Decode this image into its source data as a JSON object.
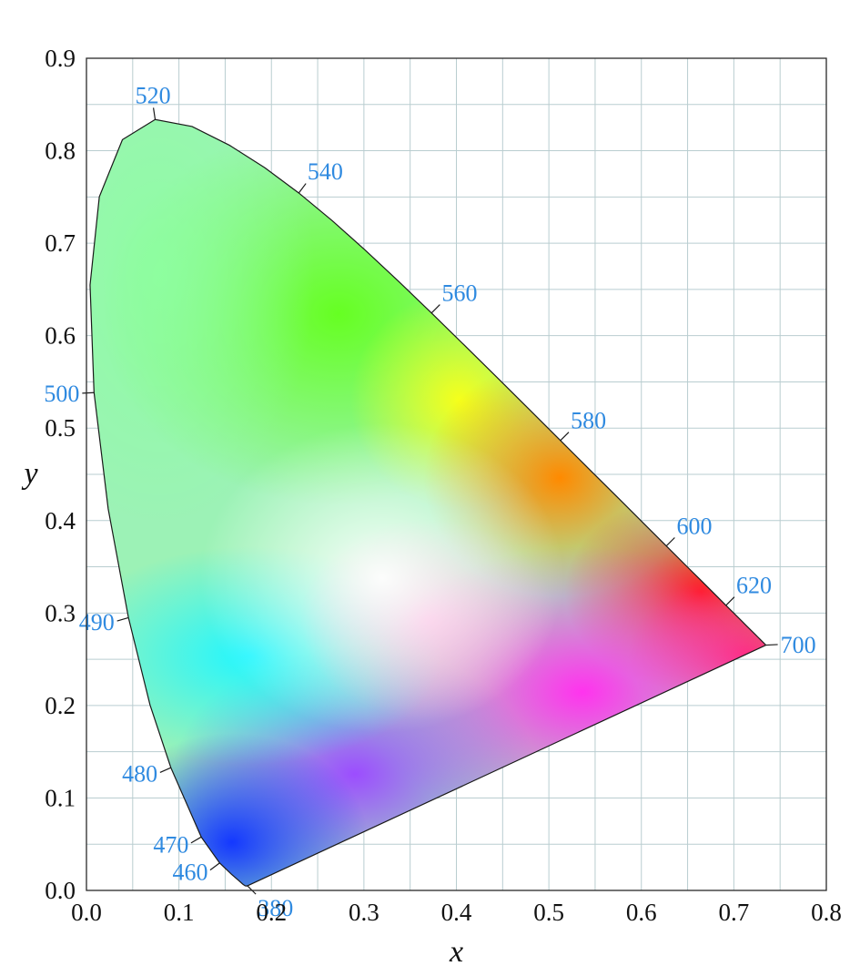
{
  "chart_data": {
    "type": "scatter",
    "title": "",
    "xlabel": "x",
    "ylabel": "y",
    "xlim": [
      0.0,
      0.8
    ],
    "ylim": [
      0.0,
      0.9
    ],
    "x_ticks": [
      "0.0",
      "0.1",
      "0.2",
      "0.3",
      "0.4",
      "0.5",
      "0.6",
      "0.7",
      "0.8"
    ],
    "y_ticks": [
      "0.0",
      "0.1",
      "0.2",
      "0.3",
      "0.4",
      "0.5",
      "0.6",
      "0.7",
      "0.8",
      "0.9"
    ],
    "grid": true,
    "grid_minor_step": 0.05,
    "series": [
      {
        "values": [
          [
            0.1741,
            0.005
          ],
          [
            0.174,
            0.005
          ],
          [
            0.1738,
            0.0049
          ],
          [
            0.1736,
            0.0049
          ],
          [
            0.1733,
            0.0048
          ],
          [
            0.1726,
            0.0048
          ],
          [
            0.1714,
            0.0051
          ],
          [
            0.1689,
            0.0069
          ],
          [
            0.1644,
            0.0109
          ],
          [
            0.1566,
            0.0177
          ],
          [
            0.144,
            0.0297
          ],
          [
            0.1241,
            0.0578
          ],
          [
            0.0913,
            0.1327
          ],
          [
            0.0687,
            0.2007
          ],
          [
            0.0454,
            0.295
          ],
          [
            0.0235,
            0.4127
          ],
          [
            0.0082,
            0.5384
          ],
          [
            0.0039,
            0.6548
          ],
          [
            0.0139,
            0.7502
          ],
          [
            0.0389,
            0.812
          ],
          [
            0.0743,
            0.8338
          ],
          [
            0.1142,
            0.8262
          ],
          [
            0.1547,
            0.8059
          ],
          [
            0.1929,
            0.7816
          ],
          [
            0.2296,
            0.7543
          ],
          [
            0.2658,
            0.7243
          ],
          [
            0.3016,
            0.6923
          ],
          [
            0.3373,
            0.6589
          ],
          [
            0.3731,
            0.6245
          ],
          [
            0.4087,
            0.5896
          ],
          [
            0.4441,
            0.5547
          ],
          [
            0.4788,
            0.5202
          ],
          [
            0.5125,
            0.4866
          ],
          [
            0.5448,
            0.4544
          ],
          [
            0.5752,
            0.4242
          ],
          [
            0.6029,
            0.3965
          ],
          [
            0.627,
            0.3725
          ],
          [
            0.6482,
            0.3514
          ],
          [
            0.6658,
            0.334
          ],
          [
            0.6801,
            0.3197
          ],
          [
            0.6915,
            0.3083
          ],
          [
            0.7006,
            0.2993
          ],
          [
            0.7079,
            0.292
          ],
          [
            0.714,
            0.2859
          ],
          [
            0.719,
            0.2809
          ],
          [
            0.723,
            0.277
          ],
          [
            0.726,
            0.274
          ],
          [
            0.7283,
            0.2717
          ],
          [
            0.73,
            0.27
          ],
          [
            0.7311,
            0.2689
          ],
          [
            0.732,
            0.268
          ],
          [
            0.7327,
            0.2673
          ],
          [
            0.7334,
            0.2666
          ],
          [
            0.734,
            0.266
          ],
          [
            0.7344,
            0.2656
          ],
          [
            0.7346,
            0.2654
          ],
          [
            0.7347,
            0.2653
          ]
        ]
      }
    ],
    "wavelength_labels": [
      {
        "label": "380",
        "x": 0.1741,
        "y": 0.005,
        "dir": [
          0.7,
          -0.7
        ]
      },
      {
        "label": "460",
        "x": 0.144,
        "y": 0.0297,
        "dir": [
          -0.8,
          -0.6
        ]
      },
      {
        "label": "470",
        "x": 0.1241,
        "y": 0.0578,
        "dir": [
          -0.85,
          -0.5
        ]
      },
      {
        "label": "480",
        "x": 0.0913,
        "y": 0.1327,
        "dir": [
          -0.92,
          -0.4
        ]
      },
      {
        "label": "490",
        "x": 0.0454,
        "y": 0.295,
        "dir": [
          -0.96,
          -0.28
        ]
      },
      {
        "label": "500",
        "x": 0.0082,
        "y": 0.5384,
        "dir": [
          -1.0,
          -0.05
        ]
      },
      {
        "label": "520",
        "x": 0.0743,
        "y": 0.8338,
        "dir": [
          -0.15,
          1.0
        ]
      },
      {
        "label": "540",
        "x": 0.2296,
        "y": 0.7543,
        "dir": [
          0.6,
          0.8
        ]
      },
      {
        "label": "560",
        "x": 0.3731,
        "y": 0.6245,
        "dir": [
          0.7,
          0.7
        ]
      },
      {
        "label": "580",
        "x": 0.5125,
        "y": 0.4866,
        "dir": [
          0.7,
          0.7
        ]
      },
      {
        "label": "600",
        "x": 0.627,
        "y": 0.3725,
        "dir": [
          0.7,
          0.7
        ]
      },
      {
        "label": "620",
        "x": 0.6915,
        "y": 0.3083,
        "dir": [
          0.7,
          0.7
        ]
      },
      {
        "label": "700",
        "x": 0.7347,
        "y": 0.2653,
        "dir": [
          1.0,
          0.05
        ]
      }
    ],
    "colors": {
      "wavelength_label": "#2f8ae0",
      "grid": "#b9cdd0",
      "frame": "#2a2a2a",
      "locus_outline": "#1a1a1a"
    }
  }
}
